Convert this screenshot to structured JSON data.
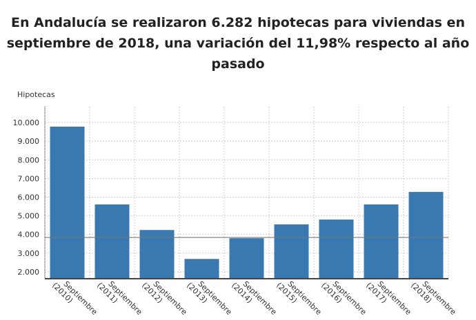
{
  "chart_data": {
    "type": "bar",
    "title": "En Andalucía se realizaron 6.282 hipotecas para viviendas en septiembre de 2018, una variación del 11,98% respecto al año pasado",
    "ylabel": "Hipotecas",
    "xlabel": "",
    "categories": [
      "Septiembre (2010)",
      "Septiembre (2011)",
      "Septiembre (2012)",
      "Septiembre (2013)",
      "Septiembre (2014)",
      "Septiembre (2015)",
      "Septiembre (2016)",
      "Septiembre (2017)",
      "Septiembre (2018)"
    ],
    "values": [
      9780,
      5610,
      4240,
      2690,
      3800,
      4540,
      4800,
      5610,
      6282
    ],
    "reference_line": 3840,
    "ylim": [
      1630,
      10850
    ],
    "yticks": [
      2000,
      3000,
      4000,
      5000,
      6000,
      7000,
      8000,
      9000,
      10000
    ],
    "ytick_labels": [
      "2.000",
      "3.000",
      "4.000",
      "5.000",
      "6.000",
      "7.000",
      "8.000",
      "9.000",
      "10.000"
    ],
    "grid": true,
    "bar_color": "#3a78b0"
  }
}
